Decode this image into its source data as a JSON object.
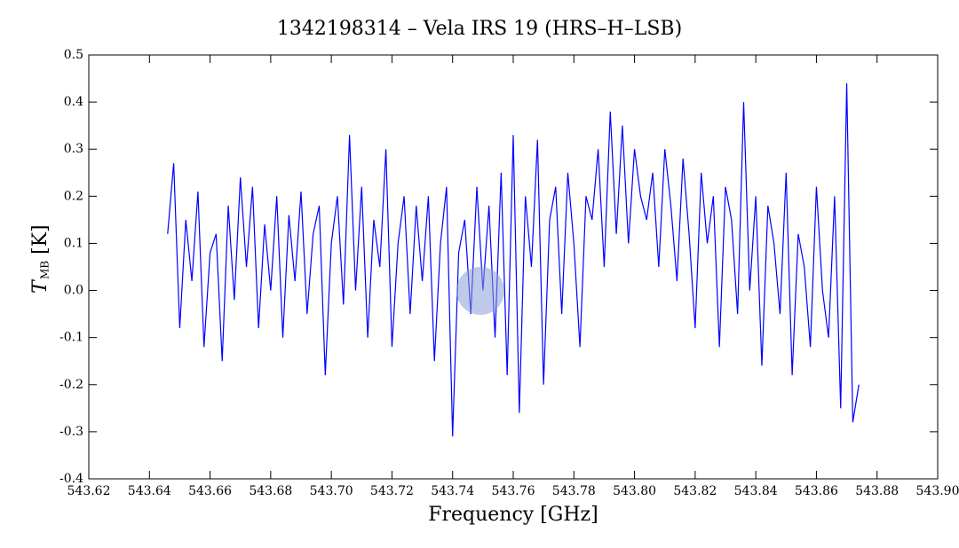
{
  "chart_data": {
    "type": "line",
    "title": "1342198314 – Vela IRS 19 (HRS–H–LSB)",
    "x_label": "Frequency [GHz]",
    "y_label": "T",
    "y_label_sub": "MB",
    "y_label_unit": "[K]",
    "color": "#0000ff",
    "x": [
      543.646,
      543.648,
      543.65,
      543.652,
      543.654,
      543.656,
      543.658,
      543.66,
      543.662,
      543.664,
      543.666,
      543.668,
      543.67,
      543.672,
      543.674,
      543.676,
      543.678,
      543.68,
      543.682,
      543.684,
      543.686,
      543.688,
      543.69,
      543.692,
      543.694,
      543.696,
      543.698,
      543.7,
      543.702,
      543.704,
      543.706,
      543.708,
      543.71,
      543.712,
      543.714,
      543.716,
      543.718,
      543.72,
      543.722,
      543.724,
      543.726,
      543.728,
      543.73,
      543.732,
      543.734,
      543.736,
      543.738,
      543.74,
      543.742,
      543.744,
      543.746,
      543.748,
      543.75,
      543.752,
      543.754,
      543.756,
      543.758,
      543.76,
      543.762,
      543.764,
      543.766,
      543.768,
      543.77,
      543.772,
      543.774,
      543.776,
      543.778,
      543.78,
      543.782,
      543.784,
      543.786,
      543.788,
      543.79,
      543.792,
      543.794,
      543.796,
      543.798,
      543.8,
      543.802,
      543.804,
      543.806,
      543.808,
      543.81,
      543.812,
      543.814,
      543.816,
      543.818,
      543.82,
      543.822,
      543.824,
      543.826,
      543.828,
      543.83,
      543.832,
      543.834,
      543.836,
      543.838,
      543.84,
      543.842,
      543.844,
      543.846,
      543.848,
      543.85,
      543.852,
      543.854,
      543.856,
      543.858,
      543.86,
      543.862,
      543.864,
      543.866,
      543.868,
      543.87,
      543.872,
      543.874
    ],
    "values": [
      0.12,
      0.27,
      -0.08,
      0.15,
      0.02,
      0.21,
      -0.12,
      0.08,
      0.12,
      -0.15,
      0.18,
      -0.02,
      0.24,
      0.05,
      0.22,
      -0.08,
      0.14,
      0.0,
      0.2,
      -0.1,
      0.16,
      0.02,
      0.21,
      -0.05,
      0.12,
      0.18,
      -0.18,
      0.1,
      0.2,
      -0.03,
      0.33,
      0.0,
      0.22,
      -0.1,
      0.15,
      0.05,
      0.3,
      -0.12,
      0.1,
      0.2,
      -0.05,
      0.18,
      0.02,
      0.2,
      -0.15,
      0.1,
      0.22,
      -0.31,
      0.08,
      0.15,
      -0.05,
      0.22,
      0.0,
      0.18,
      -0.1,
      0.25,
      -0.18,
      0.33,
      -0.26,
      0.2,
      0.05,
      0.32,
      -0.2,
      0.15,
      0.22,
      -0.05,
      0.25,
      0.1,
      -0.12,
      0.2,
      0.15,
      0.3,
      0.05,
      0.38,
      0.12,
      0.35,
      0.1,
      0.3,
      0.2,
      0.15,
      0.25,
      0.05,
      0.3,
      0.18,
      0.02,
      0.28,
      0.12,
      -0.08,
      0.25,
      0.1,
      0.2,
      -0.12,
      0.22,
      0.15,
      -0.05,
      0.4,
      0.0,
      0.2,
      -0.16,
      0.18,
      0.1,
      -0.05,
      0.25,
      -0.18,
      0.12,
      0.05,
      -0.12,
      0.22,
      0.0,
      -0.1,
      0.2,
      -0.25,
      0.44,
      -0.28,
      -0.2
    ],
    "xlim": [
      543.62,
      543.9
    ],
    "xticks": [
      543.62,
      543.64,
      543.66,
      543.68,
      {
        "value": 543.7,
        "label": "543.70"
      },
      543.72,
      543.74,
      543.76,
      543.78,
      {
        "value": 543.8,
        "label": "543.80"
      },
      543.82,
      543.84,
      543.86,
      543.88,
      {
        "value": 543.9,
        "label": "543.90"
      }
    ],
    "ylim": [
      -0.4,
      0.5
    ],
    "yticks": [
      -0.4,
      -0.3,
      -0.2,
      -0.1,
      {
        "value": 0,
        "label": "0.0"
      },
      0.1,
      0.2,
      0.3,
      0.4,
      0.5
    ]
  }
}
